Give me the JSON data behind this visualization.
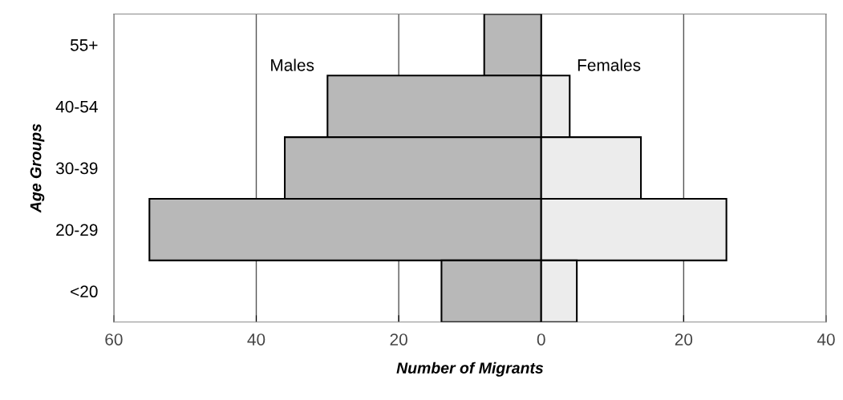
{
  "chart_data": {
    "type": "bar",
    "orientation": "horizontal",
    "stacked": true,
    "xlabel": "Number of Migrants",
    "ylabel": "Age Groups",
    "categories": [
      "55+",
      "40-54",
      "30-39",
      "20-29",
      "<20"
    ],
    "series": [
      {
        "name": "Males",
        "color": "#b8b8b8",
        "values": [
          -8,
          -30,
          -36,
          -55,
          -14
        ]
      },
      {
        "name": "Females",
        "color": "#ececec",
        "values": [
          null,
          4,
          14,
          26,
          5
        ]
      }
    ],
    "xlim": [
      -60,
      40
    ],
    "xticks": [
      {
        "value": -60,
        "label": "60"
      },
      {
        "value": -40,
        "label": "40"
      },
      {
        "value": -20,
        "label": "20"
      },
      0,
      20,
      40
    ],
    "grid": "x"
  }
}
